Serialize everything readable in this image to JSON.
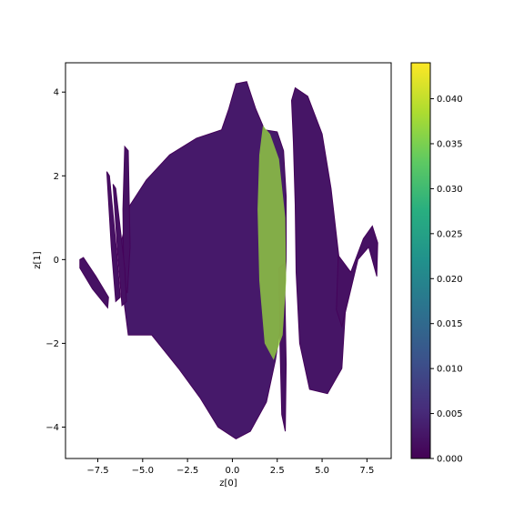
{
  "chart_data": {
    "type": "scatter",
    "title": "",
    "xlabel": "z[0]",
    "ylabel": "z[1]",
    "xlim": [
      -9.3,
      8.85
    ],
    "ylim": [
      -4.75,
      4.7
    ],
    "xticks": [
      -7.5,
      -5.0,
      -2.5,
      0.0,
      2.5,
      5.0,
      7.5
    ],
    "xtick_labels": [
      "−7.5",
      "−5.0",
      "−2.5",
      "0.0",
      "2.5",
      "5.0",
      "7.5"
    ],
    "yticks": [
      -4,
      -2,
      0,
      2,
      4
    ],
    "ytick_labels": [
      "−4",
      "−2",
      "0",
      "2",
      "4"
    ],
    "grid": false,
    "colormap": "viridis",
    "colorbar": {
      "range": [
        0.0,
        0.044
      ],
      "ticks": [
        0.0,
        0.005,
        0.01,
        0.015,
        0.02,
        0.025,
        0.03,
        0.035,
        0.04
      ],
      "tick_labels": [
        "0.000",
        "0.005",
        "0.010",
        "0.015",
        "0.020",
        "0.025",
        "0.030",
        "0.035",
        "0.040"
      ]
    },
    "regions": [
      {
        "name": "main-body",
        "value_range": [
          0.0,
          0.006
        ],
        "outline": [
          [
            -6.2,
            0.4
          ],
          [
            -5.7,
            1.3
          ],
          [
            -4.8,
            1.9
          ],
          [
            -3.5,
            2.5
          ],
          [
            -2.0,
            2.9
          ],
          [
            -0.6,
            3.1
          ],
          [
            -0.2,
            3.6
          ],
          [
            0.2,
            4.2
          ],
          [
            0.8,
            4.25
          ],
          [
            1.3,
            3.6
          ],
          [
            1.8,
            3.1
          ],
          [
            2.5,
            3.05
          ],
          [
            2.85,
            2.6
          ],
          [
            3.0,
            1.5
          ],
          [
            3.0,
            0.0
          ],
          [
            2.9,
            -1.0
          ],
          [
            2.4,
            -2.4
          ],
          [
            1.9,
            -3.4
          ],
          [
            1.0,
            -4.1
          ],
          [
            0.2,
            -4.28
          ],
          [
            -0.8,
            -4.0
          ],
          [
            -1.8,
            -3.3
          ],
          [
            -3.0,
            -2.6
          ],
          [
            -4.5,
            -1.8
          ],
          [
            -5.8,
            -1.8
          ],
          [
            -6.1,
            -0.8
          ]
        ]
      },
      {
        "name": "left-band-1",
        "value_range": [
          0.0,
          0.004
        ],
        "outline": [
          [
            -6.0,
            2.7
          ],
          [
            -5.8,
            2.6
          ],
          [
            -5.7,
            0.3
          ],
          [
            -5.85,
            -0.8
          ],
          [
            -6.05,
            -0.6
          ],
          [
            -6.1,
            1.2
          ]
        ]
      },
      {
        "name": "left-band-2",
        "value_range": [
          0.0,
          0.004
        ],
        "outline": [
          [
            -7.0,
            2.1
          ],
          [
            -6.85,
            2.0
          ],
          [
            -6.45,
            0.2
          ],
          [
            -6.25,
            -0.9
          ],
          [
            -6.5,
            -1.0
          ],
          [
            -6.75,
            0.3
          ]
        ]
      },
      {
        "name": "left-band-3",
        "value_range": [
          0.0,
          0.004
        ],
        "outline": [
          [
            -6.65,
            1.8
          ],
          [
            -6.5,
            1.7
          ],
          [
            -6.0,
            -0.2
          ],
          [
            -5.9,
            -1.0
          ],
          [
            -6.15,
            -1.1
          ],
          [
            -6.4,
            0.2
          ]
        ]
      },
      {
        "name": "left-tail",
        "value_range": [
          0.0,
          0.004
        ],
        "outline": [
          [
            -8.5,
            0.0
          ],
          [
            -8.3,
            0.05
          ],
          [
            -7.6,
            -0.4
          ],
          [
            -6.9,
            -0.9
          ],
          [
            -6.95,
            -1.15
          ],
          [
            -7.8,
            -0.7
          ],
          [
            -8.5,
            -0.2
          ]
        ]
      },
      {
        "name": "right-lobe",
        "value_range": [
          0.0,
          0.005
        ],
        "outline": [
          [
            3.5,
            4.1
          ],
          [
            4.2,
            3.9
          ],
          [
            5.0,
            3.0
          ],
          [
            5.5,
            1.7
          ],
          [
            5.9,
            0.2
          ],
          [
            6.3,
            -1.2
          ],
          [
            6.1,
            -2.6
          ],
          [
            5.3,
            -3.2
          ],
          [
            4.3,
            -3.1
          ],
          [
            3.75,
            -2.0
          ],
          [
            3.55,
            -0.3
          ],
          [
            3.5,
            1.3
          ],
          [
            3.4,
            2.8
          ],
          [
            3.3,
            3.8
          ]
        ]
      },
      {
        "name": "right-tail",
        "value_range": [
          0.0,
          0.004
        ],
        "outline": [
          [
            5.9,
            0.1
          ],
          [
            6.6,
            -0.3
          ],
          [
            7.3,
            0.5
          ],
          [
            7.8,
            0.8
          ],
          [
            8.1,
            0.4
          ],
          [
            8.05,
            -0.4
          ],
          [
            7.6,
            0.3
          ],
          [
            7.0,
            0.0
          ],
          [
            6.5,
            -0.9
          ],
          [
            6.1,
            -1.6
          ],
          [
            5.8,
            -1.2
          ]
        ]
      },
      {
        "name": "lower-spike",
        "value_range": [
          0.0,
          0.004
        ],
        "outline": [
          [
            2.6,
            -0.2
          ],
          [
            2.9,
            -0.1
          ],
          [
            3.0,
            -2.5
          ],
          [
            2.95,
            -4.1
          ],
          [
            2.75,
            -3.7
          ],
          [
            2.65,
            -2.0
          ]
        ]
      },
      {
        "name": "high-value-band",
        "value_range": [
          0.03,
          0.044
        ],
        "outline": [
          [
            1.7,
            3.2
          ],
          [
            2.1,
            3.0
          ],
          [
            2.6,
            2.4
          ],
          [
            2.95,
            1.0
          ],
          [
            3.0,
            -0.5
          ],
          [
            2.8,
            -1.8
          ],
          [
            2.3,
            -2.4
          ],
          [
            1.8,
            -2.0
          ],
          [
            1.5,
            -0.5
          ],
          [
            1.4,
            1.2
          ],
          [
            1.5,
            2.5
          ]
        ]
      }
    ]
  }
}
